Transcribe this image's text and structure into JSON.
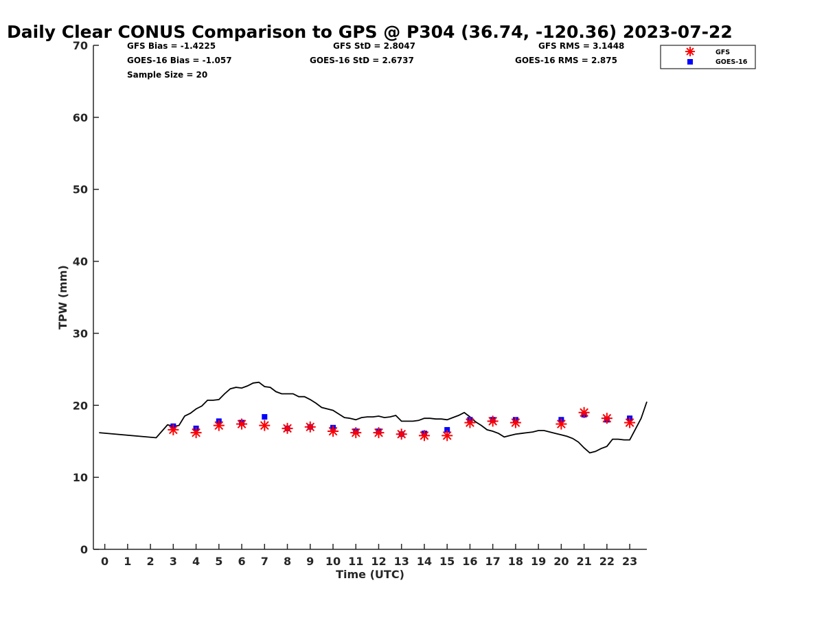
{
  "chart_data": {
    "type": "scatter",
    "title": "Daily Clear CONUS Comparison to GPS @ P304 (36.74, -120.36) 2023-07-22",
    "xlabel": "Time (UTC)",
    "ylabel": "TPW (mm)",
    "xlim": [
      -0.5,
      23.75
    ],
    "ylim": [
      0,
      70
    ],
    "x_ticks": [
      "0",
      "1",
      "2",
      "3",
      "4",
      "5",
      "6",
      "7",
      "8",
      "9",
      "10",
      "11",
      "12",
      "13",
      "14",
      "15",
      "16",
      "17",
      "18",
      "19",
      "20",
      "21",
      "22",
      "23"
    ],
    "y_ticks": [
      "0",
      "10",
      "20",
      "30",
      "40",
      "50",
      "60",
      "70"
    ],
    "stats": {
      "gfs_bias": "GFS Bias = -1.4225",
      "goes_bias": "GOES-16 Bias = -1.057",
      "sample_size": "Sample Size = 20",
      "gfs_std": "GFS StD = 2.8047",
      "goes_std": "GOES-16 StD = 2.6737",
      "gfs_rms": "GFS RMS = 3.1448",
      "goes_rms": "GOES-16 RMS = 2.875"
    },
    "legend": {
      "position": "top-right",
      "gfs": "GFS",
      "goes": "GOES-16"
    },
    "colors": {
      "gfs": "#ff0000",
      "goes": "#0000ff",
      "gps": "#000000"
    },
    "series": [
      {
        "key": "gps",
        "type": "line",
        "x": [
          -0.25,
          2.25,
          2.75,
          3.0,
          3.25,
          3.5,
          3.75,
          4.0,
          4.25,
          4.5,
          4.75,
          5.0,
          5.25,
          5.5,
          5.75,
          6.0,
          6.25,
          6.5,
          6.75,
          7.0,
          7.25,
          7.5,
          7.75,
          8.0,
          8.25,
          8.5,
          8.75,
          9.0,
          9.25,
          9.5,
          9.75,
          10.0,
          10.25,
          10.5,
          10.75,
          11.0,
          11.25,
          11.5,
          11.75,
          12.0,
          12.25,
          12.5,
          12.75,
          13.0,
          13.25,
          13.5,
          13.75,
          14.0,
          14.25,
          14.5,
          14.75,
          15.0,
          15.25,
          15.5,
          15.75,
          16.0,
          16.25,
          16.5,
          16.75,
          17.0,
          17.25,
          17.5,
          17.75,
          18.0,
          18.25,
          18.5,
          18.75,
          19.0,
          19.25,
          19.5,
          19.75,
          20.0,
          20.25,
          20.5,
          20.75,
          21.0,
          21.25,
          21.5,
          21.75,
          22.0,
          22.25,
          22.5,
          22.75,
          23.0,
          23.25,
          23.5,
          23.75
        ],
        "y": [
          16.2,
          15.5,
          17.3,
          17.1,
          17.2,
          18.5,
          18.9,
          19.5,
          19.9,
          20.7,
          20.7,
          20.8,
          21.6,
          22.3,
          22.5,
          22.4,
          22.7,
          23.1,
          23.2,
          22.6,
          22.5,
          21.9,
          21.6,
          21.6,
          21.6,
          21.2,
          21.2,
          20.8,
          20.3,
          19.7,
          19.5,
          19.3,
          18.8,
          18.3,
          18.2,
          18.0,
          18.3,
          18.4,
          18.4,
          18.5,
          18.3,
          18.4,
          18.6,
          17.8,
          17.8,
          17.8,
          17.9,
          18.2,
          18.2,
          18.1,
          18.1,
          18.0,
          18.3,
          18.6,
          19.0,
          18.4,
          17.7,
          17.2,
          16.6,
          16.4,
          16.1,
          15.6,
          15.8,
          16.0,
          16.1,
          16.2,
          16.3,
          16.5,
          16.5,
          16.3,
          16.1,
          15.9,
          15.7,
          15.4,
          14.9,
          14.1,
          13.4,
          13.6,
          14.0,
          14.3,
          15.3,
          15.3,
          15.2,
          15.2,
          16.7,
          18.2,
          20.5
        ]
      },
      {
        "key": "gfs",
        "type": "scatter",
        "name": "GFS",
        "x": [
          3,
          4,
          5,
          6,
          7,
          8,
          9,
          10,
          11,
          12,
          13,
          14,
          15,
          16,
          17,
          18,
          20,
          21,
          22,
          23
        ],
        "y": [
          16.6,
          16.2,
          17.2,
          17.4,
          17.2,
          16.8,
          17.0,
          16.4,
          16.2,
          16.2,
          16.0,
          15.8,
          15.8,
          17.6,
          17.8,
          17.6,
          17.4,
          19.0,
          18.2,
          17.6
        ]
      },
      {
        "key": "goes",
        "type": "scatter",
        "name": "GOES-16",
        "x": [
          3,
          4,
          5,
          6,
          7,
          8,
          9,
          10,
          11,
          12,
          13,
          14,
          15,
          16,
          17,
          18,
          20,
          21,
          22,
          23
        ],
        "y": [
          17.1,
          16.8,
          17.8,
          17.6,
          18.4,
          16.8,
          17.0,
          16.9,
          16.4,
          16.4,
          16.0,
          16.1,
          16.6,
          18.0,
          18.0,
          18.0,
          18.0,
          18.7,
          18.0,
          18.2
        ]
      }
    ]
  }
}
